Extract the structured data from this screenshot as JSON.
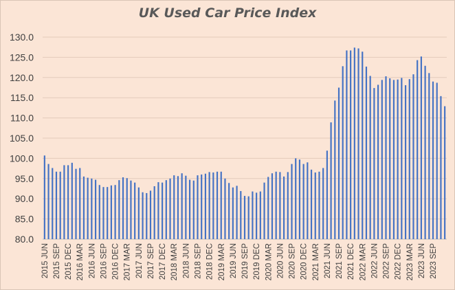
{
  "chart_data": {
    "type": "bar",
    "title": "UK Used Car Price Index",
    "xlabel": "",
    "ylabel": "",
    "ylim": [
      80,
      130
    ],
    "yticks": [
      80.0,
      85.0,
      90.0,
      95.0,
      100.0,
      105.0,
      110.0,
      115.0,
      120.0,
      125.0,
      130.0
    ],
    "gridlines": true,
    "legend": "none",
    "bar_color": "#4472c4",
    "categories": [
      "2015 JUN",
      "2015 JUL",
      "2015 AUG",
      "2015 SEP",
      "2015 OCT",
      "2015 NOV",
      "2015 DEC",
      "2016 JAN",
      "2016 FEB",
      "2016 MAR",
      "2016 APR",
      "2016 MAY",
      "2016 JUN",
      "2016 JUL",
      "2016 AUG",
      "2016 SEP",
      "2016 OCT",
      "2016 NOV",
      "2016 DEC",
      "2017 JAN",
      "2017 FEB",
      "2017 MAR",
      "2017 APR",
      "2017 MAY",
      "2017 JUN",
      "2017 JUL",
      "2017 AUG",
      "2017 SEP",
      "2017 OCT",
      "2017 NOV",
      "2017 DEC",
      "2018 JAN",
      "2018 FEB",
      "2018 MAR",
      "2018 APR",
      "2018 MAY",
      "2018 JUN",
      "2018 JUL",
      "2018 AUG",
      "2018 SEP",
      "2018 OCT",
      "2018 NOV",
      "2018 DEC",
      "2019 JAN",
      "2019 FEB",
      "2019 MAR",
      "2019 APR",
      "2019 MAY",
      "2019 JUN",
      "2019 JUL",
      "2019 AUG",
      "2019 SEP",
      "2019 OCT",
      "2019 NOV",
      "2019 DEC",
      "2020 JAN",
      "2020 FEB",
      "2020 MAR",
      "2020 APR",
      "2020 MAY",
      "2020 JUN",
      "2020 JUL",
      "2020 AUG",
      "2020 SEP",
      "2020 OCT",
      "2020 NOV",
      "2020 DEC",
      "2021 JAN",
      "2021 FEB",
      "2021 MAR",
      "2021 APR",
      "2021 MAY",
      "2021 JUN",
      "2021 JUL",
      "2021 AUG",
      "2021 SEP",
      "2021 OCT",
      "2021 NOV",
      "2021 DEC",
      "2022 JAN",
      "2022 FEB",
      "2022 MAR",
      "2022 APR",
      "2022 MAY",
      "2022 JUN",
      "2022 JUL",
      "2022 AUG",
      "2022 SEP",
      "2022 OCT",
      "2022 NOV",
      "2022 DEC",
      "2023 JAN",
      "2023 FEB",
      "2023 MAR",
      "2023 APR",
      "2023 MAY",
      "2023 JUN",
      "2023 JUL",
      "2023 AUG",
      "2023 SEP",
      "2023 OCT",
      "2023 NOV",
      "2023 DEC"
    ],
    "values": [
      100.7,
      98.6,
      97.6,
      96.7,
      96.7,
      98.3,
      98.3,
      98.9,
      97.4,
      97.6,
      95.5,
      95.2,
      95.0,
      94.7,
      93.4,
      92.9,
      92.9,
      93.3,
      93.4,
      94.6,
      95.3,
      95.1,
      94.5,
      94.0,
      92.8,
      91.6,
      91.4,
      92.0,
      93.1,
      94.1,
      94.0,
      94.6,
      95.0,
      95.8,
      95.6,
      96.3,
      95.7,
      94.7,
      94.5,
      95.8,
      96.0,
      96.2,
      96.6,
      96.5,
      96.7,
      96.7,
      95.0,
      93.9,
      92.8,
      93.2,
      91.9,
      90.7,
      90.6,
      91.8,
      91.5,
      91.8,
      94.0,
      95.4,
      96.3,
      96.7,
      96.6,
      95.5,
      96.6,
      98.6,
      100.0,
      99.7,
      98.6,
      99.0,
      97.2,
      96.5,
      96.7,
      97.6,
      101.9,
      108.9,
      114.3,
      117.5,
      122.8,
      126.7,
      126.7,
      127.4,
      127.2,
      126.4,
      122.7,
      120.4,
      117.4,
      118.2,
      119.4,
      120.3,
      119.8,
      119.4,
      119.5,
      119.9,
      118.1,
      119.6,
      120.8,
      124.3,
      125.2,
      122.9,
      121.1,
      119.0,
      118.7,
      115.4,
      112.9
    ],
    "tick_labels": [
      "2015 JUN",
      "2015 SEP",
      "2015 DEC",
      "2016 MAR",
      "2016 JUN",
      "2016 SEP",
      "2016 DEC",
      "2017 MAR",
      "2017 JUN",
      "2017 SEP",
      "2017 DEC",
      "2018 MAR",
      "2018 JUN",
      "2018 SEP",
      "2018 DEC",
      "2019 MAR",
      "2019 JUN",
      "2019 SEP",
      "2019 DEC",
      "2020 MAR",
      "2020 JUN",
      "2020 SEP",
      "2020 DEC",
      "2021 MAR",
      "2021 JUN",
      "2021 SEP",
      "2021 DEC",
      "2022 MAR",
      "2022 JUN",
      "2022 SEP",
      "2022 DEC",
      "2023 MAR",
      "2023 JUN",
      "2023 SEP"
    ]
  }
}
